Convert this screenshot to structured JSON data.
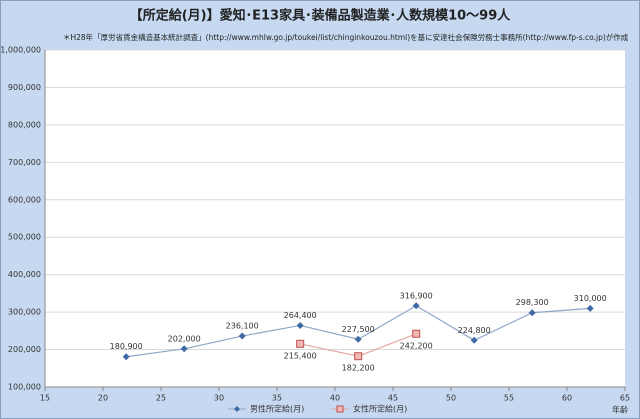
{
  "chart_data": {
    "type": "line",
    "title": "【所定給(月)】愛知･E13家具･装備品製造業･人数規模10～99人",
    "subtitle": "＊H28年「厚労省賃金構造基本統計調査」(http://www.mhlw.go.jp/toukei/list/chinginkouzou.html)を基に安達社会保険労務士事務所(http://www.fp-s.co.jp)が作成",
    "x_label": "年齢",
    "series": [
      {
        "name": "男性所定給(月)",
        "color": "#3f6aa6",
        "line_color": "#8ea6c8",
        "marker": "diamond",
        "x": [
          22,
          27,
          32,
          37,
          42,
          47,
          52,
          57,
          62
        ],
        "values": [
          180900,
          202000,
          236100,
          264400,
          227500,
          316900,
          224800,
          298300,
          310000
        ],
        "value_labels": [
          "180,900",
          "202,000",
          "236,100",
          "264,400",
          "227,500",
          "316,900",
          "224,800",
          "298,300",
          "310,000"
        ]
      },
      {
        "name": "女性所定給(月)",
        "color": "#c0504d",
        "line_color": "#e3a7a5",
        "marker": "square",
        "x": [
          37,
          42,
          47
        ],
        "values": [
          215400,
          182200,
          242200
        ],
        "value_labels": [
          "215,400",
          "182,200",
          "242,200"
        ]
      }
    ],
    "xlim": [
      15,
      65
    ],
    "xticks": [
      15,
      20,
      25,
      30,
      35,
      40,
      45,
      50,
      55,
      60,
      65
    ],
    "ylim": [
      100000,
      1000000
    ],
    "yticks": [
      {
        "value": 100000,
        "label": "100,000"
      },
      {
        "value": 200000,
        "label": "200,000"
      },
      {
        "value": 300000,
        "label": "300,000"
      },
      {
        "value": 400000,
        "label": "400,000"
      },
      {
        "value": 500000,
        "label": "500,000"
      },
      {
        "value": 600000,
        "label": "600,000"
      },
      {
        "value": 700000,
        "label": "700,000"
      },
      {
        "value": 800000,
        "label": "800,000"
      },
      {
        "value": 900000,
        "label": "900,000"
      },
      {
        "value": 1000000,
        "label": "1,000,000"
      }
    ],
    "grid": true,
    "legend": "bottom"
  }
}
